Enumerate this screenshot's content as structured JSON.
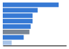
{
  "chart_data": {
    "type": "bar",
    "orientation": "horizontal",
    "categories": [
      null,
      null,
      null,
      null,
      null,
      null,
      null,
      null
    ],
    "values": [
      88,
      55,
      47,
      47,
      44,
      42,
      33,
      14
    ],
    "colors": [
      "#3679d4",
      "#3679d4",
      "#3679d4",
      "#3679d4",
      "#3679d4",
      "#7a8694",
      "#3679d4",
      "#a8c4e8"
    ],
    "xlim": [
      0,
      100
    ],
    "tick_labels": false
  }
}
